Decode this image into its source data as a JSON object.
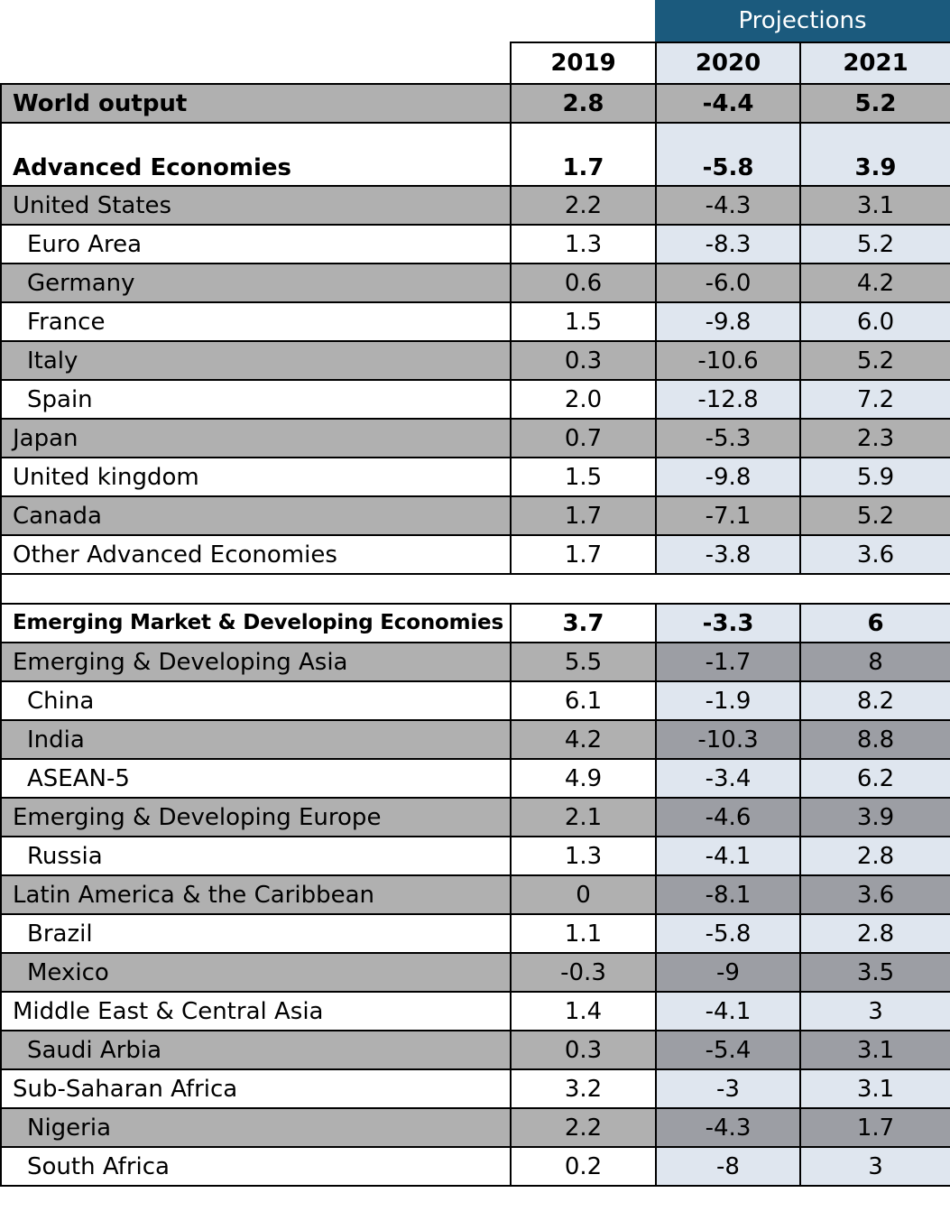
{
  "header": {
    "projections_label": "Projections",
    "years": [
      "2019",
      "2020",
      "2021"
    ]
  },
  "rows": [
    {
      "label": "World output",
      "v2019": "2.8",
      "v2020": "-4.4",
      "v2021": "5.2"
    },
    {
      "label": "Advanced Economies",
      "v2019": "1.7",
      "v2020": "-5.8",
      "v2021": "3.9"
    },
    {
      "label": "United States",
      "v2019": "2.2",
      "v2020": "-4.3",
      "v2021": "3.1"
    },
    {
      "label": "Euro Area",
      "v2019": "1.3",
      "v2020": "-8.3",
      "v2021": "5.2"
    },
    {
      "label": "Germany",
      "v2019": "0.6",
      "v2020": "-6.0",
      "v2021": "4.2"
    },
    {
      "label": "France",
      "v2019": "1.5",
      "v2020": "-9.8",
      "v2021": "6.0"
    },
    {
      "label": "Italy",
      "v2019": "0.3",
      "v2020": "-10.6",
      "v2021": "5.2"
    },
    {
      "label": "Spain",
      "v2019": "2.0",
      "v2020": "-12.8",
      "v2021": "7.2"
    },
    {
      "label": "Japan",
      "v2019": "0.7",
      "v2020": "-5.3",
      "v2021": "2.3"
    },
    {
      "label": "United kingdom",
      "v2019": "1.5",
      "v2020": "-9.8",
      "v2021": "5.9"
    },
    {
      "label": "Canada",
      "v2019": "1.7",
      "v2020": "-7.1",
      "v2021": "5.2"
    },
    {
      "label": "Other Advanced Economies",
      "v2019": "1.7",
      "v2020": "-3.8",
      "v2021": "3.6"
    },
    {
      "label": "Emerging Market & Developing Economies",
      "v2019": "3.7",
      "v2020": "-3.3",
      "v2021": "6"
    },
    {
      "label": "Emerging & Developing Asia",
      "v2019": "5.5",
      "v2020": "-1.7",
      "v2021": "8"
    },
    {
      "label": "China",
      "v2019": "6.1",
      "v2020": "-1.9",
      "v2021": "8.2"
    },
    {
      "label": "India",
      "v2019": "4.2",
      "v2020": "-10.3",
      "v2021": "8.8"
    },
    {
      "label": "ASEAN-5",
      "v2019": "4.9",
      "v2020": "-3.4",
      "v2021": "6.2"
    },
    {
      "label": "Emerging & Developing Europe",
      "v2019": "2.1",
      "v2020": "-4.6",
      "v2021": "3.9"
    },
    {
      "label": "Russia",
      "v2019": "1.3",
      "v2020": "-4.1",
      "v2021": "2.8"
    },
    {
      "label": "Latin America & the Caribbean",
      "v2019": "0",
      "v2020": "-8.1",
      "v2021": "3.6"
    },
    {
      "label": "Brazil",
      "v2019": "1.1",
      "v2020": "-5.8",
      "v2021": "2.8"
    },
    {
      "label": "Mexico",
      "v2019": "-0.3",
      "v2020": "-9",
      "v2021": "3.5"
    },
    {
      "label": "Middle East & Central Asia",
      "v2019": "1.4",
      "v2020": "-4.1",
      "v2021": "3"
    },
    {
      "label": "Saudi Arbia",
      "v2019": "0.3",
      "v2020": "-5.4",
      "v2021": "3.1"
    },
    {
      "label": "Sub-Saharan Africa",
      "v2019": "3.2",
      "v2020": "-3",
      "v2021": "3.1"
    },
    {
      "label": "Nigeria",
      "v2019": "2.2",
      "v2020": "-4.3",
      "v2021": "1.7"
    },
    {
      "label": "South Africa",
      "v2019": "0.2",
      "v2020": "-8",
      "v2021": "3"
    }
  ]
}
